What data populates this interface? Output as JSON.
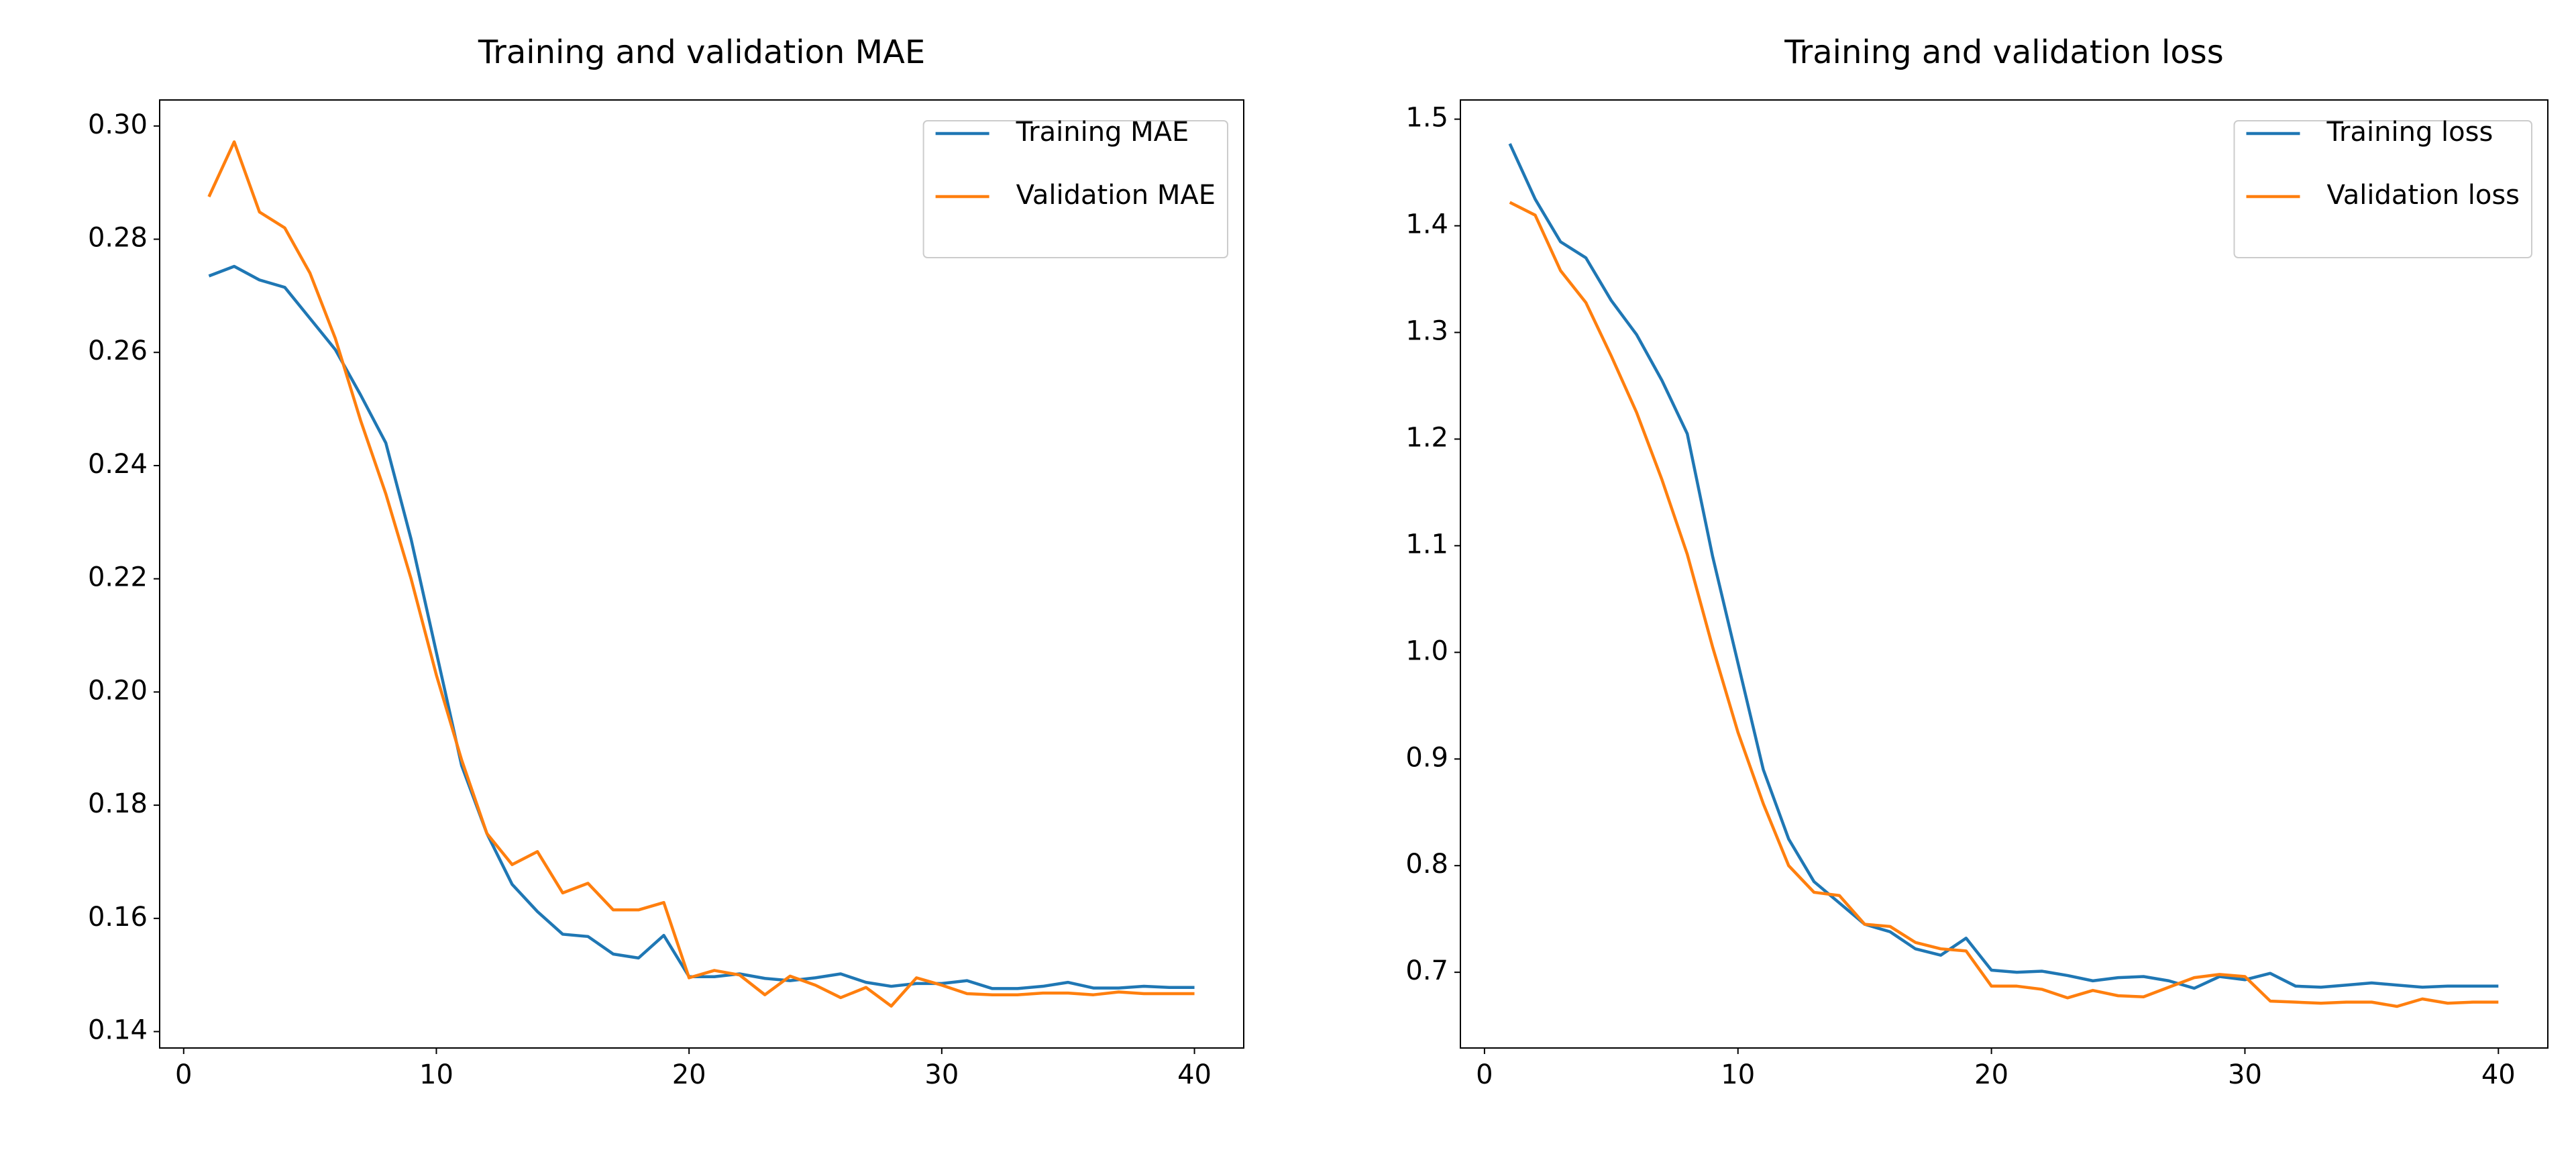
{
  "chart_data": [
    {
      "type": "line",
      "title": "Training and validation MAE",
      "x": [
        1,
        2,
        3,
        4,
        5,
        6,
        7,
        8,
        9,
        10,
        11,
        12,
        13,
        14,
        15,
        16,
        17,
        18,
        19,
        20,
        21,
        22,
        23,
        24,
        25,
        26,
        27,
        28,
        29,
        30,
        31,
        32,
        33,
        34,
        35,
        36,
        37,
        38,
        39,
        40
      ],
      "series": [
        {
          "name": "Training MAE",
          "color": "#1f77b4",
          "values": [
            0.2735,
            0.2752,
            0.2728,
            0.2715,
            0.266,
            0.2605,
            0.2525,
            0.244,
            0.227,
            0.207,
            0.187,
            0.175,
            0.166,
            0.1612,
            0.1572,
            0.1568,
            0.1537,
            0.153,
            0.157,
            0.1497,
            0.1497,
            0.1502,
            0.1494,
            0.149,
            0.1495,
            0.1502,
            0.1487,
            0.148,
            0.1485,
            0.1485,
            0.149,
            0.1476,
            0.1476,
            0.148,
            0.1487,
            0.1477,
            0.1477,
            0.148,
            0.1478,
            0.1478
          ]
        },
        {
          "name": "Validation MAE",
          "color": "#ff7f0e",
          "values": [
            0.2875,
            0.2972,
            0.2848,
            0.282,
            0.274,
            0.2625,
            0.248,
            0.235,
            0.22,
            0.203,
            0.188,
            0.175,
            0.1695,
            0.1718,
            0.1645,
            0.1662,
            0.1615,
            0.1615,
            0.1628,
            0.1495,
            0.1508,
            0.15,
            0.1465,
            0.1498,
            0.1482,
            0.146,
            0.1478,
            0.1445,
            0.1495,
            0.1482,
            0.1467,
            0.1465,
            0.1465,
            0.1468,
            0.1468,
            0.1465,
            0.147,
            0.1467,
            0.1467,
            0.1467
          ]
        }
      ],
      "xlim": [
        -0.95,
        41.95
      ],
      "xticks": [
        0,
        10,
        20,
        30,
        40
      ],
      "ylim": [
        0.1371,
        0.3046
      ],
      "yticks": [
        0.14,
        0.16,
        0.18,
        {
          "value": 0.2,
          "label": "0.20"
        },
        0.22,
        0.24,
        0.26,
        0.28,
        {
          "value": 0.3,
          "label": "0.30"
        }
      ],
      "legend": "upper right"
    },
    {
      "type": "line",
      "title": "Training and validation loss",
      "x": [
        1,
        2,
        3,
        4,
        5,
        6,
        7,
        8,
        9,
        10,
        11,
        12,
        13,
        14,
        15,
        16,
        17,
        18,
        19,
        20,
        21,
        22,
        23,
        24,
        25,
        26,
        27,
        28,
        29,
        30,
        31,
        32,
        33,
        34,
        35,
        36,
        37,
        38,
        39,
        40
      ],
      "series": [
        {
          "name": "Training loss",
          "color": "#1f77b4",
          "values": [
            1.477,
            1.425,
            1.385,
            1.37,
            1.33,
            1.298,
            1.255,
            1.205,
            1.09,
            0.99,
            0.89,
            0.825,
            0.785,
            0.765,
            0.745,
            0.738,
            0.722,
            0.716,
            0.732,
            0.702,
            0.7,
            0.701,
            0.697,
            0.692,
            0.695,
            0.696,
            0.692,
            0.685,
            0.696,
            0.693,
            0.699,
            0.687,
            0.686,
            0.688,
            0.69,
            0.688,
            0.686,
            0.687,
            0.687,
            0.687
          ]
        },
        {
          "name": "Validation loss",
          "color": "#ff7f0e",
          "values": [
            1.422,
            1.41,
            1.358,
            1.328,
            1.278,
            1.225,
            1.162,
            1.092,
            1.005,
            0.925,
            0.858,
            0.8,
            0.775,
            0.772,
            0.745,
            0.743,
            0.728,
            0.722,
            0.72,
            0.687,
            0.687,
            0.684,
            0.676,
            0.683,
            0.678,
            0.677,
            0.686,
            0.695,
            0.698,
            0.696,
            0.673,
            0.672,
            0.671,
            0.672,
            0.672,
            0.668,
            0.675,
            0.671,
            0.672,
            0.672
          ]
        }
      ],
      "xlim": [
        -0.95,
        41.95
      ],
      "xticks": [
        0,
        10,
        20,
        30,
        40
      ],
      "ylim": [
        0.629,
        1.518
      ],
      "yticks": [
        0.7,
        0.8,
        0.9,
        {
          "value": 1,
          "label": "1.0"
        },
        1.1,
        1.2,
        1.3,
        1.4,
        1.5
      ],
      "legend": "upper right"
    }
  ]
}
